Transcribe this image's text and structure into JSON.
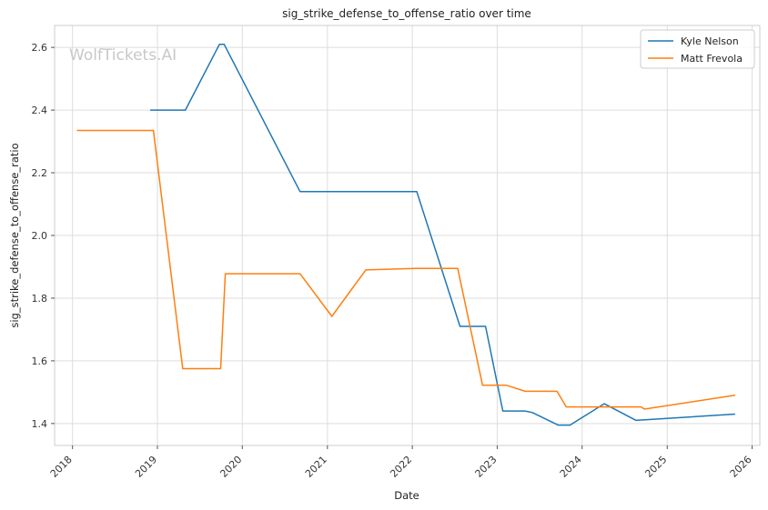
{
  "chart_data": {
    "type": "line",
    "title": "sig_strike_defense_to_offense_ratio over time",
    "xlabel": "Date",
    "ylabel": "sig_strike_defense_to_offense_ratio",
    "watermark": "WolfTickets.AI",
    "xlim": [
      "2017-10-16",
      "2026-02-03"
    ],
    "ylim": [
      1.33,
      2.67
    ],
    "x_ticks": [
      "2018",
      "2019",
      "2020",
      "2021",
      "2022",
      "2023",
      "2024",
      "2025",
      "2026"
    ],
    "y_ticks": [
      "1.4",
      "1.6",
      "1.8",
      "2.0",
      "2.2",
      "2.4",
      "2.6"
    ],
    "grid": true,
    "legend_position": "top-right",
    "series": [
      {
        "name": "Kyle Nelson",
        "color": "#1f77b4",
        "points": [
          [
            "2018-12-01",
            2.4
          ],
          [
            "2019-05-01",
            2.4
          ],
          [
            "2019-09-25",
            2.61
          ],
          [
            "2019-10-15",
            2.61
          ],
          [
            "2020-09-05",
            2.14
          ],
          [
            "2022-01-20",
            2.14
          ],
          [
            "2022-07-25",
            1.71
          ],
          [
            "2022-11-12",
            1.71
          ],
          [
            "2023-01-25",
            1.44
          ],
          [
            "2023-05-01",
            1.44
          ],
          [
            "2023-06-01",
            1.435
          ],
          [
            "2023-09-20",
            1.395
          ],
          [
            "2023-11-10",
            1.395
          ],
          [
            "2024-04-05",
            1.463
          ],
          [
            "2024-08-20",
            1.41
          ],
          [
            "2025-10-20",
            1.43
          ]
        ]
      },
      {
        "name": "Matt Frevola",
        "color": "#ff7f0e",
        "points": [
          [
            "2018-01-20",
            2.335
          ],
          [
            "2018-12-15",
            2.335
          ],
          [
            "2019-04-20",
            1.575
          ],
          [
            "2019-09-30",
            1.575
          ],
          [
            "2019-10-20",
            1.878
          ],
          [
            "2020-09-05",
            1.878
          ],
          [
            "2021-01-20",
            1.742
          ],
          [
            "2021-06-15",
            1.89
          ],
          [
            "2022-01-15",
            1.895
          ],
          [
            "2022-07-15",
            1.895
          ],
          [
            "2022-10-30",
            1.522
          ],
          [
            "2023-02-10",
            1.522
          ],
          [
            "2023-05-01",
            1.503
          ],
          [
            "2023-09-15",
            1.503
          ],
          [
            "2023-10-25",
            1.453
          ],
          [
            "2024-09-10",
            1.453
          ],
          [
            "2024-09-25",
            1.446
          ],
          [
            "2025-10-20",
            1.49
          ]
        ]
      }
    ]
  }
}
